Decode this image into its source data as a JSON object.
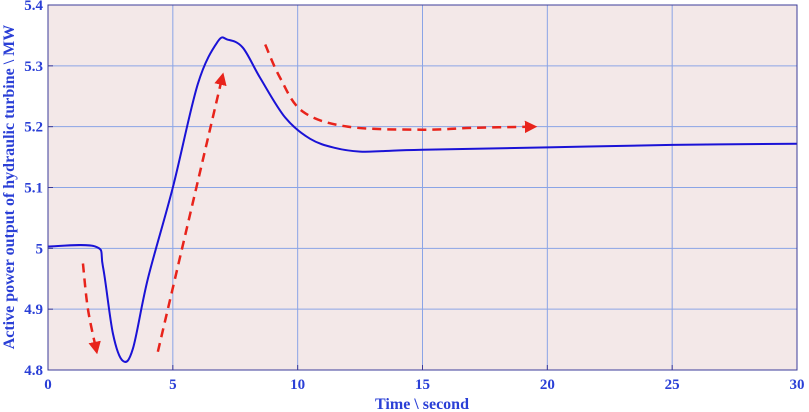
{
  "chart_data": {
    "type": "line",
    "title": "",
    "xlabel": "Time \\ second",
    "ylabel": "Active power output of hydraulic turbine \\ MW",
    "xlim": [
      0,
      30
    ],
    "ylim": [
      4.8,
      5.4
    ],
    "x_ticks": [
      "0",
      "5",
      "10",
      "15",
      "20",
      "25",
      "30"
    ],
    "y_ticks": [
      "4.8",
      "4.9",
      "5",
      "5.1",
      "5.2",
      "5.3",
      "5.4"
    ],
    "grid": true,
    "background_color": "#f3e8e8",
    "grid_color": "#8aa4e6",
    "text_color": "#2a3fd6",
    "series": [
      {
        "color": "#1a12d6",
        "x": [
          0,
          1.9,
          2.2,
          2.6,
          3.0,
          3.4,
          4.0,
          5.0,
          6.0,
          6.8,
          7.2,
          7.8,
          8.5,
          9.5,
          10.5,
          11.5,
          12.5,
          13.5,
          15,
          20,
          25,
          30
        ],
        "y": [
          5.003,
          5.003,
          4.97,
          4.86,
          4.815,
          4.835,
          4.95,
          5.1,
          5.27,
          5.34,
          5.343,
          5.33,
          5.28,
          5.215,
          5.18,
          5.165,
          5.159,
          5.16,
          5.162,
          5.166,
          5.17,
          5.172
        ]
      }
    ],
    "annotations": [
      {
        "type": "dashed-arrow",
        "color": "#e8231b",
        "points": [
          [
            1.4,
            4.975
          ],
          [
            1.6,
            4.9
          ],
          [
            1.95,
            4.83
          ]
        ]
      },
      {
        "type": "dashed-arrow",
        "color": "#e8231b",
        "points": [
          [
            4.4,
            4.83
          ],
          [
            7.0,
            5.285
          ]
        ]
      },
      {
        "type": "dashed-arrow",
        "color": "#e8231b",
        "points": [
          [
            8.7,
            5.335
          ],
          [
            9.3,
            5.28
          ],
          [
            10.2,
            5.225
          ],
          [
            12.0,
            5.2
          ],
          [
            15.0,
            5.195
          ],
          [
            17.0,
            5.198
          ],
          [
            19.5,
            5.2
          ]
        ]
      }
    ]
  }
}
